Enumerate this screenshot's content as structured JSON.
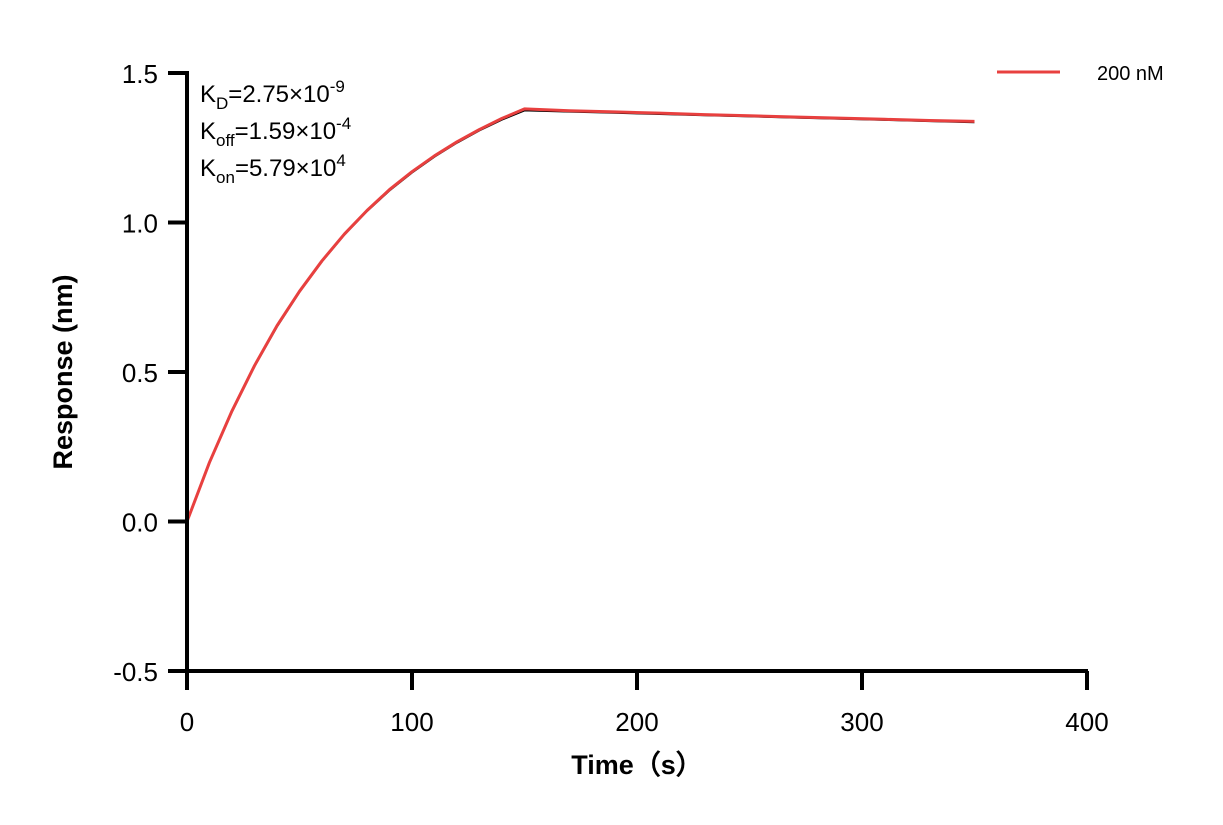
{
  "chart_data": {
    "type": "line",
    "title": "",
    "xlabel": "Time（s）",
    "ylabel": "Response (nm)",
    "xlim": [
      0,
      400
    ],
    "ylim": [
      -0.5,
      1.5
    ],
    "xticks": [
      0,
      100,
      200,
      300,
      400
    ],
    "xtick_labels": [
      "0",
      "100",
      "200",
      "300",
      "400"
    ],
    "yticks": [
      -0.5,
      0.0,
      0.5,
      1.0,
      1.5
    ],
    "ytick_labels": [
      "-0.5",
      "0.0",
      "0.5",
      "1.0",
      "1.5"
    ],
    "grid": false,
    "legend_position": "top-right",
    "annotations": [
      {
        "main": "K",
        "sub": "D",
        "rest": "=2.75×10",
        "sup": "-9"
      },
      {
        "main": "K",
        "sub": "off",
        "rest": "=1.59×10",
        "sup": "-4"
      },
      {
        "main": "K",
        "sub": "on",
        "rest": "=5.79×10",
        "sup": "4"
      }
    ],
    "x": [
      0,
      10,
      20,
      30,
      40,
      50,
      60,
      70,
      80,
      90,
      100,
      110,
      120,
      130,
      140,
      150,
      170,
      190,
      210,
      230,
      250,
      270,
      290,
      310,
      330,
      350
    ],
    "series": [
      {
        "role": "fit",
        "color": "#000000",
        "values": [
          0,
          0.196,
          0.368,
          0.519,
          0.652,
          0.768,
          0.87,
          0.96,
          1.038,
          1.107,
          1.167,
          1.22,
          1.267,
          1.308,
          1.344,
          1.375,
          1.371,
          1.367,
          1.363,
          1.359,
          1.355,
          1.351,
          1.347,
          1.343,
          1.339,
          1.335
        ]
      },
      {
        "name": "200 nM",
        "color": "#e8403f",
        "values": [
          0,
          0.198,
          0.37,
          0.521,
          0.655,
          0.77,
          0.872,
          0.962,
          1.04,
          1.11,
          1.17,
          1.223,
          1.27,
          1.311,
          1.348,
          1.38,
          1.374,
          1.37,
          1.366,
          1.361,
          1.357,
          1.353,
          1.349,
          1.345,
          1.341,
          1.338
        ]
      }
    ]
  }
}
